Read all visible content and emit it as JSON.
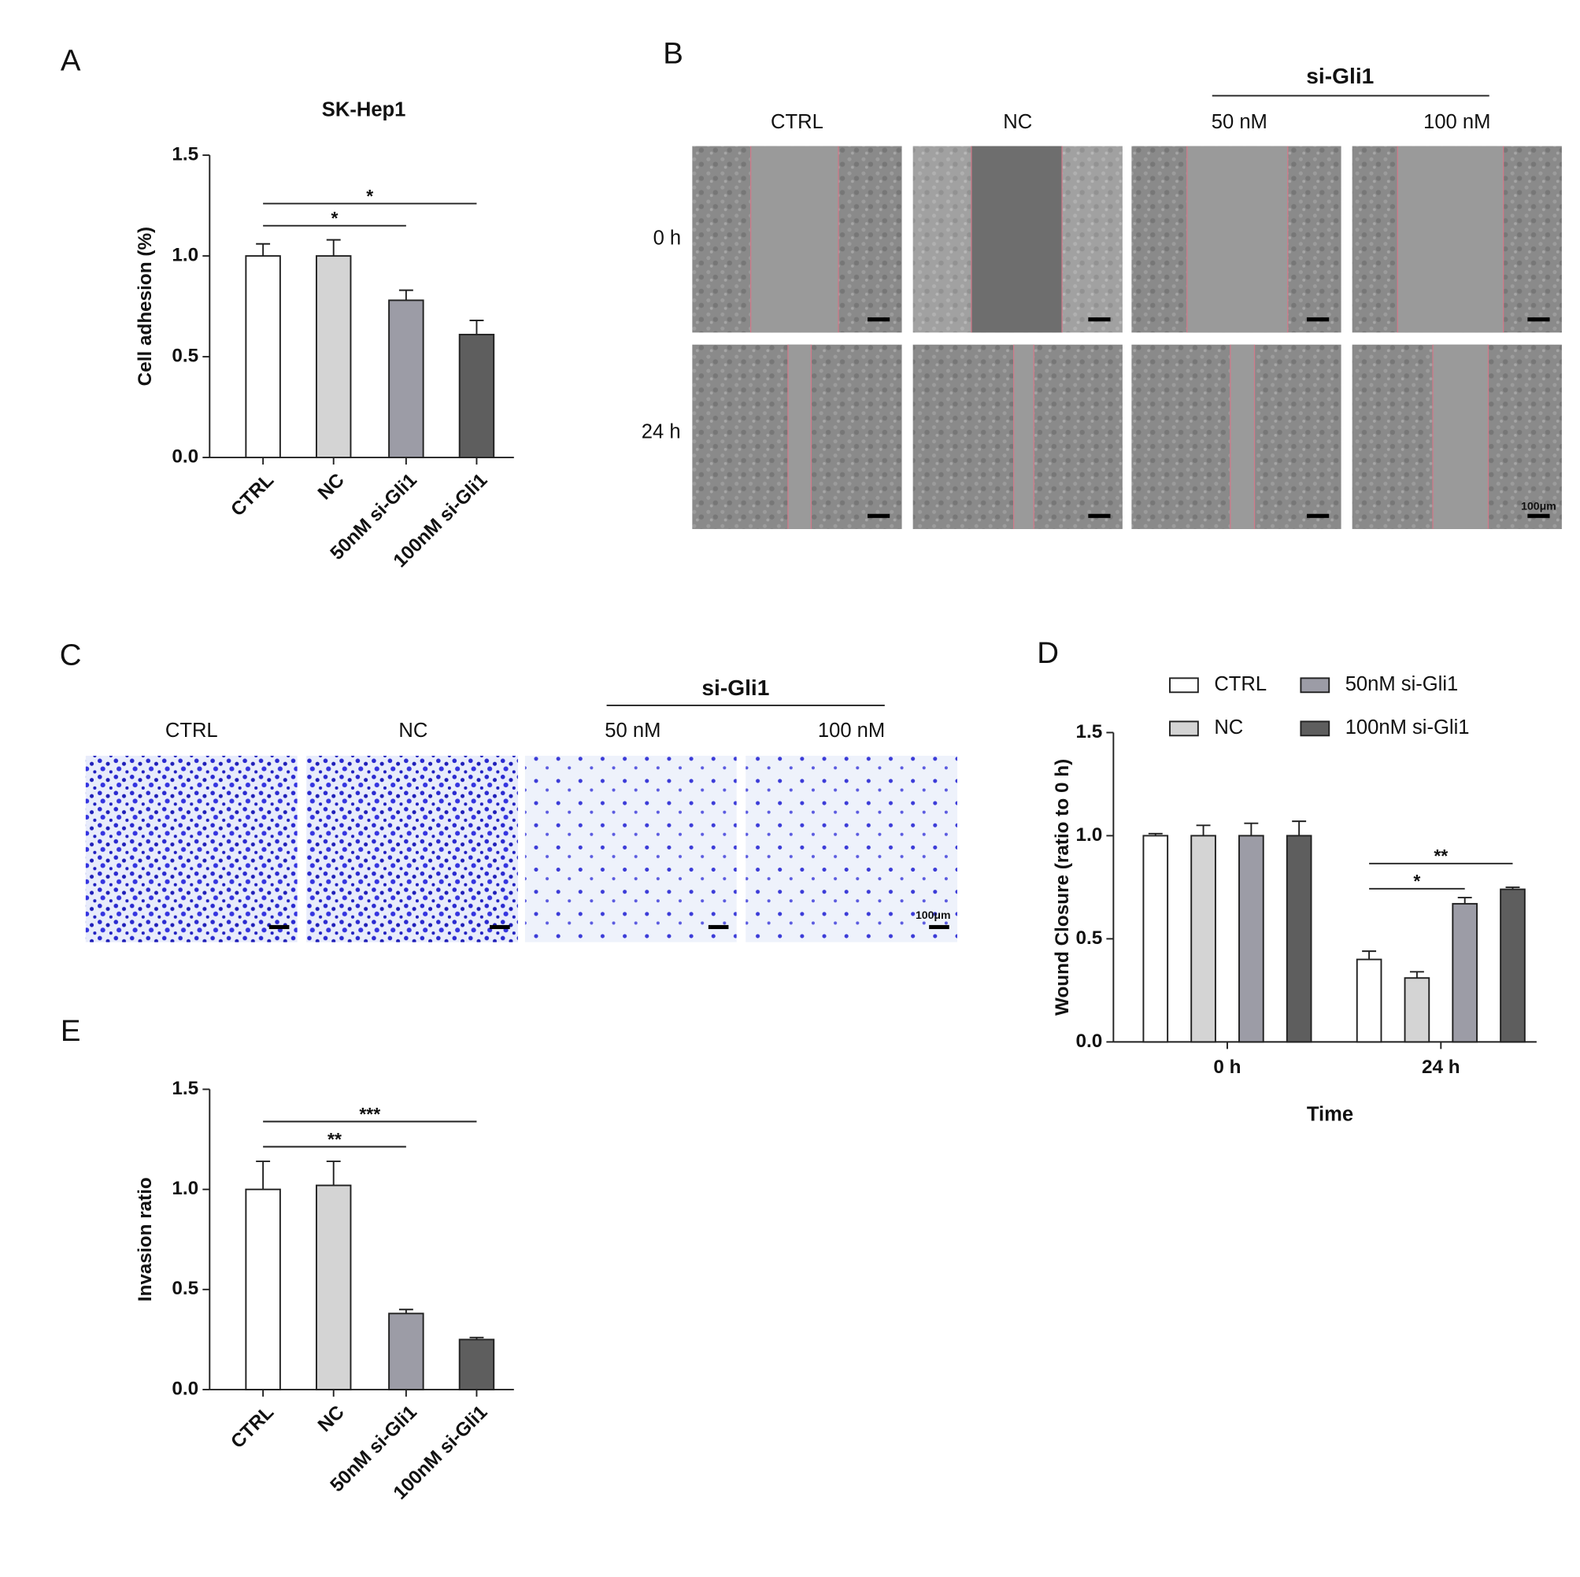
{
  "chart_data": [
    {
      "type": "bar",
      "panel": "A",
      "title": "SK-Hep1",
      "y_label": "Cell adhesion (%)",
      "categories": [
        "CTRL",
        "NC",
        "50nM si-Gli1",
        "100nM si-Gli1"
      ],
      "values": [
        1.0,
        1.0,
        0.78,
        0.61
      ],
      "errors": [
        0.06,
        0.08,
        0.05,
        0.07
      ],
      "colors": [
        "#ffffff",
        "#d4d4d4",
        "#9c9ca6",
        "#5e5e5e"
      ],
      "ylim": [
        0,
        1.5
      ],
      "yticks": [
        {
          "value": 0,
          "label": "0.0"
        },
        {
          "value": 0.5,
          "label": "0.5"
        },
        {
          "value": 1,
          "label": "1.0"
        },
        {
          "value": 1.5,
          "label": "1.5"
        }
      ],
      "significance": [
        {
          "from": 0,
          "to": 2,
          "label": "*"
        },
        {
          "from": 0,
          "to": 3,
          "label": "*"
        }
      ]
    },
    {
      "type": "grouped_bar",
      "panel": "D",
      "y_label": "Wound Closure (ratio to 0 h)",
      "x_label": "Time",
      "categories": [
        "0 h",
        "24 h"
      ],
      "series": [
        {
          "name": "CTRL",
          "color": "#ffffff",
          "values": [
            1.0,
            0.4
          ],
          "errors": [
            0.01,
            0.04
          ]
        },
        {
          "name": "NC",
          "color": "#d4d4d4",
          "values": [
            1.0,
            0.31
          ],
          "errors": [
            0.05,
            0.03
          ]
        },
        {
          "name": "50nM si-Gli1",
          "color": "#9c9ca6",
          "values": [
            1.0,
            0.67
          ],
          "errors": [
            0.06,
            0.03
          ]
        },
        {
          "name": "100nM si-Gli1",
          "color": "#5e5e5e",
          "values": [
            1.0,
            0.74
          ],
          "errors": [
            0.07,
            0.01
          ]
        }
      ],
      "ylim": [
        0,
        1.5
      ],
      "yticks": [
        {
          "value": 0,
          "label": "0.0"
        },
        {
          "value": 0.5,
          "label": "0.5"
        },
        {
          "value": 1,
          "label": "1.0"
        },
        {
          "value": 1.5,
          "label": "1.5"
        }
      ],
      "significance": [
        {
          "group": 1,
          "from": 0,
          "to": 2,
          "label": "*"
        },
        {
          "group": 1,
          "from": 0,
          "to": 3,
          "label": "**"
        }
      ]
    },
    {
      "type": "bar",
      "panel": "E",
      "y_label": "Invasion ratio",
      "categories": [
        "CTRL",
        "NC",
        "50nM si-Gli1",
        "100nM si-Gli1"
      ],
      "values": [
        1.0,
        1.02,
        0.38,
        0.25
      ],
      "errors": [
        0.14,
        0.12,
        0.02,
        0.01
      ],
      "colors": [
        "#ffffff",
        "#d4d4d4",
        "#9c9ca6",
        "#5e5e5e"
      ],
      "ylim": [
        0,
        1.5
      ],
      "yticks": [
        {
          "value": 0,
          "label": "0.0"
        },
        {
          "value": 0.5,
          "label": "0.5"
        },
        {
          "value": 1,
          "label": "1.0"
        },
        {
          "value": 1.5,
          "label": "1.5"
        }
      ],
      "significance": [
        {
          "from": 0,
          "to": 2,
          "label": "**"
        },
        {
          "from": 0,
          "to": 3,
          "label": "***"
        }
      ]
    }
  ],
  "micrographs": [
    {
      "panel": "B",
      "group_label": "si-Gli1",
      "columns": [
        "CTRL",
        "NC",
        "50 nM",
        "100 nM"
      ],
      "rows": [
        "0 h",
        "24 h"
      ],
      "scale_label": "100μm"
    },
    {
      "panel": "C",
      "group_label": "si-Gli1",
      "columns": [
        "CTRL",
        "NC",
        "50 nM",
        "100 nM"
      ],
      "scale_label": "100μm"
    }
  ]
}
